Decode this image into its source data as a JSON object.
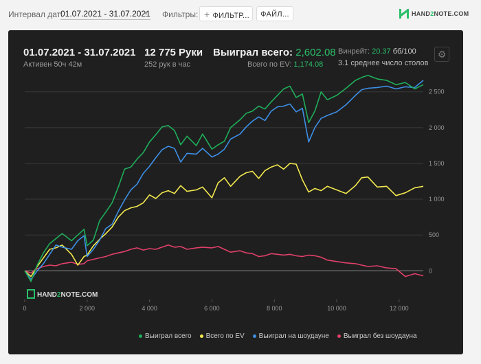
{
  "filters": {
    "date_label": "Интервал дат:",
    "date_value": "01.07.2021 - 31.07.2021",
    "filters_label": "Фильтры:",
    "filter_button": "ФИЛЬТР...",
    "file_button": "ФАЙЛ..."
  },
  "logo": {
    "part1": "HAND",
    "part2": "2",
    "part3": "NOTE.COM"
  },
  "summary": {
    "period": "01.07.2021 - 31.07.2021",
    "active": "Активен 50ч 42м",
    "hands": "12 775 Руки",
    "hands_per_hour": "252 рук в час",
    "won_label": "Выиграл всего:",
    "won_value": "2,602.08",
    "ev_label": "Всего по EV:",
    "ev_value": "1,174.08",
    "winrate_label": "Винрейт:",
    "winrate_value": "20.37",
    "winrate_unit": "бб/100",
    "tables": "3.1 среднее число столов"
  },
  "watermark": {
    "part1": "HAND",
    "part2": "2",
    "part3": "NOTE.COM"
  },
  "colors": {
    "won": "#1fae5b",
    "ev": "#f2e94e",
    "showdown": "#3d8fe6",
    "non_showdown": "#e2406a"
  },
  "chart_data": {
    "type": "line",
    "xlim": [
      0,
      12775
    ],
    "ylim": [
      -400,
      2900
    ],
    "x_ticks": [
      0,
      2000,
      4000,
      6000,
      8000,
      10000,
      12000
    ],
    "x_tick_labels": [
      "0",
      "2 000",
      "4 000",
      "6 000",
      "8 000",
      "10 000",
      "12 000"
    ],
    "y_ticks": [
      0,
      500,
      1000,
      1500,
      2000,
      2500
    ],
    "y_tick_labels": [
      "0",
      "500",
      "1 000",
      "1 500",
      "2 000",
      "2 500"
    ],
    "grid": true,
    "legend_position": "bottom",
    "series": [
      {
        "name": "Выиграл всего",
        "x": [
          0,
          200,
          400,
          600,
          800,
          1000,
          1200,
          1500,
          1700,
          1900,
          2000,
          2200,
          2400,
          2600,
          2800,
          3000,
          3200,
          3400,
          3600,
          3800,
          4000,
          4200,
          4400,
          4600,
          4800,
          5000,
          5200,
          5500,
          5700,
          6000,
          6200,
          6400,
          6600,
          6900,
          7100,
          7300,
          7500,
          7700,
          7900,
          8100,
          8300,
          8500,
          8700,
          8900,
          9100,
          9300,
          9500,
          9700,
          10000,
          10300,
          10600,
          10800,
          11000,
          11300,
          11600,
          11900,
          12200,
          12500,
          12775
        ],
        "y": [
          0,
          -150,
          80,
          250,
          380,
          450,
          520,
          420,
          500,
          580,
          350,
          430,
          700,
          820,
          950,
          1170,
          1420,
          1450,
          1560,
          1650,
          1800,
          1900,
          2010,
          2030,
          1960,
          1760,
          1880,
          1750,
          1910,
          1700,
          1760,
          1810,
          2000,
          2110,
          2200,
          2230,
          2300,
          2260,
          2360,
          2450,
          2540,
          2580,
          2420,
          2470,
          2070,
          2230,
          2500,
          2390,
          2450,
          2550,
          2660,
          2700,
          2730,
          2680,
          2660,
          2600,
          2630,
          2540,
          2600
        ]
      },
      {
        "name": "Всего по EV",
        "x": [
          0,
          200,
          400,
          600,
          800,
          1000,
          1200,
          1500,
          1700,
          1900,
          2000,
          2200,
          2400,
          2600,
          2800,
          3000,
          3200,
          3400,
          3600,
          3800,
          4000,
          4200,
          4400,
          4600,
          4800,
          5000,
          5200,
          5500,
          5700,
          6000,
          6200,
          6400,
          6600,
          6900,
          7100,
          7300,
          7500,
          7700,
          7900,
          8100,
          8300,
          8500,
          8700,
          8900,
          9100,
          9300,
          9500,
          9700,
          10000,
          10300,
          10600,
          10800,
          11000,
          11300,
          11600,
          11900,
          12200,
          12500,
          12775
        ],
        "y": [
          0,
          -80,
          60,
          180,
          300,
          320,
          360,
          230,
          80,
          200,
          220,
          350,
          440,
          520,
          610,
          750,
          840,
          880,
          900,
          950,
          1060,
          1010,
          1090,
          1120,
          1080,
          1190,
          1110,
          1130,
          1170,
          1020,
          1230,
          1300,
          1180,
          1320,
          1370,
          1390,
          1290,
          1400,
          1450,
          1480,
          1420,
          1500,
          1490,
          1270,
          1100,
          1150,
          1120,
          1180,
          1130,
          1080,
          1190,
          1300,
          1310,
          1170,
          1180,
          1050,
          1090,
          1160,
          1180
        ]
      },
      {
        "name": "Выиграл на шоудауне",
        "x": [
          0,
          200,
          400,
          600,
          800,
          1000,
          1200,
          1500,
          1700,
          1900,
          2000,
          2200,
          2400,
          2600,
          2800,
          3000,
          3200,
          3400,
          3600,
          3800,
          4000,
          4200,
          4400,
          4600,
          4800,
          5000,
          5200,
          5500,
          5700,
          6000,
          6200,
          6400,
          6600,
          6900,
          7100,
          7300,
          7500,
          7700,
          7900,
          8100,
          8300,
          8500,
          8700,
          8900,
          9100,
          9300,
          9500,
          9700,
          10000,
          10300,
          10600,
          10800,
          11000,
          11300,
          11600,
          11900,
          12200,
          12500,
          12775
        ],
        "y": [
          0,
          -120,
          0,
          100,
          230,
          360,
          330,
          300,
          420,
          490,
          200,
          300,
          430,
          590,
          650,
          830,
          990,
          1130,
          1210,
          1360,
          1460,
          1580,
          1690,
          1740,
          1710,
          1520,
          1640,
          1630,
          1710,
          1590,
          1630,
          1700,
          1840,
          1910,
          2010,
          2090,
          2150,
          2100,
          2230,
          2290,
          2300,
          2330,
          2220,
          2270,
          1800,
          2000,
          2130,
          2170,
          2220,
          2320,
          2450,
          2530,
          2550,
          2560,
          2580,
          2540,
          2570,
          2560,
          2660
        ]
      },
      {
        "name": "Выиграл без шоудауна",
        "x": [
          0,
          200,
          400,
          600,
          800,
          1000,
          1200,
          1500,
          1700,
          1900,
          2000,
          2200,
          2400,
          2600,
          2800,
          3000,
          3200,
          3400,
          3600,
          3800,
          4000,
          4200,
          4400,
          4600,
          4800,
          5000,
          5200,
          5500,
          5700,
          6000,
          6200,
          6400,
          6600,
          6900,
          7100,
          7300,
          7500,
          7700,
          7900,
          8100,
          8300,
          8500,
          8700,
          8900,
          9100,
          9300,
          9500,
          9700,
          10000,
          10300,
          10600,
          10800,
          11000,
          11300,
          11600,
          11900,
          12200,
          12500,
          12775
        ],
        "y": [
          0,
          -30,
          30,
          60,
          80,
          70,
          100,
          120,
          90,
          100,
          140,
          160,
          180,
          200,
          230,
          250,
          270,
          300,
          320,
          290,
          310,
          300,
          330,
          360,
          330,
          340,
          300,
          320,
          330,
          320,
          340,
          300,
          260,
          280,
          250,
          240,
          200,
          210,
          240,
          230,
          220,
          230,
          210,
          200,
          220,
          210,
          190,
          150,
          130,
          110,
          100,
          80,
          60,
          70,
          40,
          30,
          -80,
          -40,
          -70
        ]
      }
    ]
  }
}
